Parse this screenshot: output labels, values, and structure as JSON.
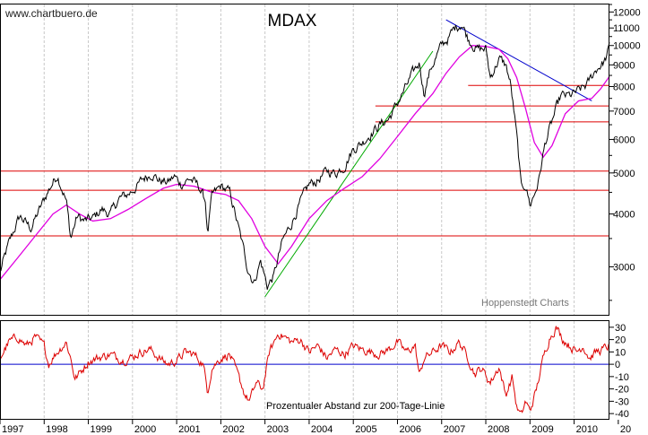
{
  "watermark": "www.chartbuero.de",
  "title": "MDAX",
  "credit": "Hoppenstedt Charts",
  "osc_label": "Prozentualer Abstand zur 200-Tage-Linie",
  "colors": {
    "price": "#000000",
    "ma200": "#e000e0",
    "hline": "#dd0000",
    "uptrend": "#00aa00",
    "downtrend": "#0000cc",
    "osc": "#dd0000",
    "zero_line": "#0000cc",
    "grid": "#c8c8c8"
  },
  "chart_data": [
    {
      "type": "line",
      "title": "MDAX",
      "scale": "log",
      "ylim": [
        2300,
        12500
      ],
      "x_range": [
        1997.0,
        2010.8
      ],
      "y_ticks": [
        3000,
        4000,
        5000,
        6000,
        7000,
        8000,
        9000,
        10000,
        11000,
        12000
      ],
      "y_tick_labels": [
        "3000",
        "4000",
        "5000",
        "6000",
        "7000",
        "8000",
        "9000",
        "10000",
        "11000",
        "12000"
      ],
      "horizontal_lines": [
        3550,
        4550,
        5050,
        6600,
        7200,
        8050,
        10000
      ],
      "trend_lines": [
        {
          "name": "uptrend",
          "from": [
            2003.0,
            2550
          ],
          "to": [
            2006.8,
            9700
          ]
        },
        {
          "name": "downtrend",
          "from": [
            2007.1,
            11500
          ],
          "to": [
            2010.4,
            7400
          ]
        }
      ],
      "series": [
        {
          "key": "price",
          "x": [
            1997.0,
            1997.2,
            1997.45,
            1997.7,
            1997.9,
            1998.1,
            1998.3,
            1998.5,
            1998.6,
            1998.75,
            1998.9,
            1999.1,
            1999.3,
            1999.5,
            1999.7,
            1999.9,
            2000.1,
            2000.25,
            2000.45,
            2000.6,
            2000.8,
            2000.95,
            2001.1,
            2001.3,
            2001.5,
            2001.65,
            2001.7,
            2001.8,
            2002.0,
            2002.2,
            2002.4,
            2002.6,
            2002.75,
            2002.9,
            2003.05,
            2003.2,
            2003.4,
            2003.6,
            2003.8,
            2004.0,
            2004.2,
            2004.4,
            2004.6,
            2004.8,
            2005.0,
            2005.2,
            2005.4,
            2005.6,
            2005.8,
            2006.0,
            2006.2,
            2006.35,
            2006.5,
            2006.6,
            2006.75,
            2006.9,
            2007.0,
            2007.15,
            2007.3,
            2007.45,
            2007.6,
            2007.8,
            2008.0,
            2008.1,
            2008.3,
            2008.45,
            2008.55,
            2008.7,
            2008.8,
            2008.9,
            2009.0,
            2009.1,
            2009.2,
            2009.35,
            2009.5,
            2009.7,
            2009.9,
            2010.1,
            2010.3,
            2010.5,
            2010.7,
            2010.8
          ],
          "y": [
            2900,
            3400,
            3950,
            3700,
            4100,
            4550,
            4950,
            4300,
            3500,
            3950,
            3850,
            3900,
            4100,
            4000,
            4350,
            4450,
            4650,
            4850,
            5000,
            4800,
            4750,
            4900,
            4700,
            4850,
            4650,
            4300,
            3550,
            4400,
            4650,
            4500,
            3700,
            3000,
            2750,
            3100,
            2700,
            2850,
            3450,
            3800,
            4250,
            4700,
            4800,
            5050,
            5000,
            5200,
            5700,
            5900,
            6200,
            6500,
            6700,
            7300,
            8000,
            8600,
            9100,
            7700,
            8800,
            9500,
            10000,
            10400,
            11000,
            11300,
            10400,
            9800,
            9800,
            8400,
            9300,
            9000,
            8200,
            6100,
            4600,
            4700,
            4200,
            4450,
            4800,
            5900,
            6600,
            7600,
            7600,
            7800,
            8100,
            8800,
            9200,
            9900
          ]
        },
        {
          "key": "ma200",
          "x": [
            1997.0,
            1997.4,
            1997.8,
            1998.2,
            1998.5,
            1998.8,
            1999.1,
            1999.5,
            1999.9,
            2000.3,
            2000.7,
            2001.0,
            2001.4,
            2001.8,
            2002.1,
            2002.4,
            2002.7,
            2003.0,
            2003.3,
            2003.6,
            2004.0,
            2004.4,
            2004.8,
            2005.2,
            2005.6,
            2006.0,
            2006.4,
            2006.8,
            2007.1,
            2007.4,
            2007.7,
            2008.0,
            2008.3,
            2008.5,
            2008.7,
            2008.9,
            2009.1,
            2009.3,
            2009.5,
            2009.8,
            2010.1,
            2010.4,
            2010.6,
            2010.8
          ],
          "y": [
            2800,
            3150,
            3550,
            4000,
            4200,
            4000,
            3850,
            3900,
            4100,
            4350,
            4600,
            4700,
            4650,
            4500,
            4450,
            4300,
            3900,
            3350,
            3050,
            3350,
            3900,
            4300,
            4600,
            4900,
            5400,
            6100,
            6900,
            7700,
            8600,
            9400,
            10000,
            9950,
            9800,
            9300,
            8400,
            7100,
            5900,
            5450,
            5800,
            6900,
            7400,
            7500,
            7900,
            8450
          ]
        }
      ]
    },
    {
      "type": "line",
      "title": "Prozentualer Abstand zur 200-Tage-Linie",
      "ylim": [
        -45,
        35
      ],
      "x_range": [
        1997.0,
        2010.8
      ],
      "y_ticks": [
        30,
        20,
        10,
        0,
        -10,
        -20,
        -30,
        -40
      ],
      "y_tick_labels": [
        "30",
        "20",
        "10",
        "0",
        "-10",
        "-20",
        "-30",
        "-40"
      ],
      "zero_line": 0,
      "x_tick_labels": [
        "1997",
        "1998",
        "1999",
        "2000",
        "2001",
        "2002",
        "2003",
        "2004",
        "2005",
        "2006",
        "2007",
        "2008",
        "2009",
        "2010",
        "20"
      ],
      "series": [
        {
          "key": "oscillator",
          "x": [
            1997.0,
            1997.2,
            1997.4,
            1997.6,
            1997.8,
            1998.0,
            1998.1,
            1998.25,
            1998.35,
            1998.5,
            1998.6,
            1998.7,
            1998.85,
            1999.0,
            1999.2,
            1999.5,
            1999.8,
            2000.0,
            2000.2,
            2000.4,
            2000.6,
            2000.8,
            2001.0,
            2001.2,
            2001.4,
            2001.6,
            2001.7,
            2001.8,
            2002.0,
            2002.2,
            2002.4,
            2002.55,
            2002.65,
            2002.8,
            2002.95,
            2003.1,
            2003.3,
            2003.45,
            2003.6,
            2003.8,
            2004.0,
            2004.2,
            2004.4,
            2004.6,
            2004.8,
            2005.0,
            2005.2,
            2005.4,
            2005.6,
            2005.8,
            2006.0,
            2006.2,
            2006.4,
            2006.5,
            2006.6,
            2006.8,
            2007.0,
            2007.2,
            2007.4,
            2007.6,
            2007.75,
            2007.9,
            2008.1,
            2008.3,
            2008.45,
            2008.6,
            2008.7,
            2008.8,
            2008.9,
            2009.0,
            2009.15,
            2009.3,
            2009.45,
            2009.6,
            2009.75,
            2009.9,
            2010.05,
            2010.2,
            2010.35,
            2010.5,
            2010.65,
            2010.8
          ],
          "y": [
            5,
            18,
            22,
            15,
            22,
            15,
            0,
            8,
            12,
            18,
            5,
            -12,
            -5,
            2,
            5,
            8,
            3,
            6,
            10,
            12,
            5,
            0,
            3,
            10,
            8,
            0,
            -22,
            -3,
            5,
            8,
            -10,
            -25,
            -30,
            -15,
            -20,
            10,
            25,
            22,
            18,
            20,
            10,
            15,
            5,
            12,
            8,
            15,
            12,
            10,
            8,
            12,
            18,
            10,
            15,
            -10,
            5,
            10,
            15,
            10,
            18,
            5,
            -8,
            -3,
            -15,
            -2,
            -25,
            -10,
            -35,
            -42,
            -30,
            -38,
            -20,
            5,
            22,
            30,
            20,
            15,
            10,
            15,
            5,
            10,
            12,
            15
          ]
        }
      ]
    }
  ]
}
